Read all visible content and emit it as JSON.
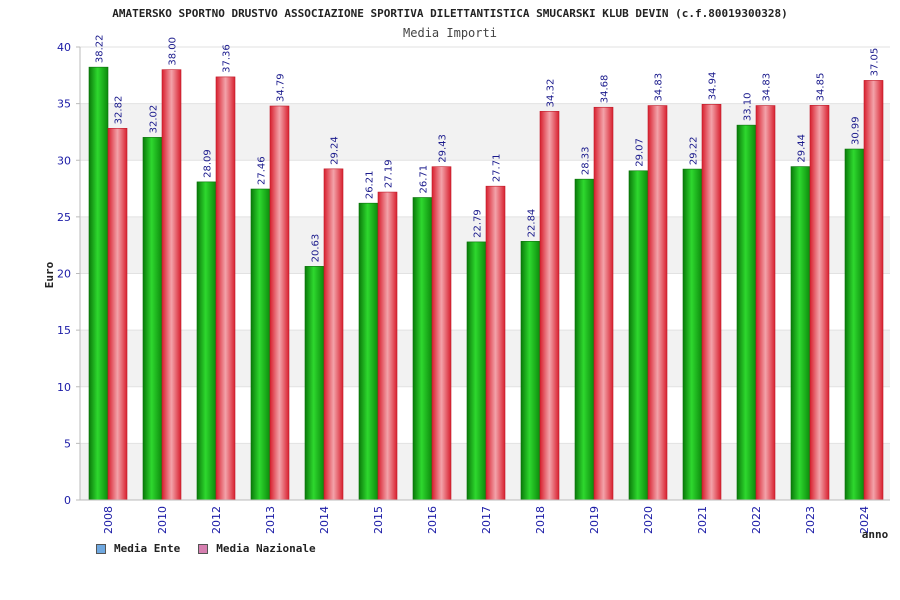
{
  "header": {
    "title": "AMATERSKO SPORTNO DRUSTVO ASSOCIAZIONE SPORTIVA DILETTANTISTICA SMUCARSKI KLUB DEVIN (c.f.80019300328)",
    "subtitle": "Media Importi"
  },
  "legend": {
    "items": [
      {
        "label": "Media Ente",
        "color": "#6fa8e0"
      },
      {
        "label": "Media Nazionale",
        "color": "#d67fb0"
      }
    ]
  },
  "colors": {
    "ente": "#12a812",
    "nazionale": "#e8404e",
    "band": "#f2f2f2",
    "axis": "#bbbbbb"
  },
  "chart_data": {
    "type": "bar",
    "title": "Media Importi",
    "xlabel": "anno",
    "ylabel": "Euro",
    "ylim": [
      0,
      40
    ],
    "yticks": [
      0,
      5,
      10,
      15,
      20,
      25,
      30,
      35,
      40
    ],
    "grid": "alternating horizontal bands",
    "legend_position": "bottom-left",
    "categories": [
      "2008",
      "2010",
      "2012",
      "2013",
      "2014",
      "2015",
      "2016",
      "2017",
      "2018",
      "2019",
      "2020",
      "2021",
      "2022",
      "2023",
      "2024"
    ],
    "series": [
      {
        "name": "Media Ente",
        "values": [
          38.22,
          32.02,
          28.09,
          27.46,
          20.63,
          26.21,
          26.71,
          22.79,
          22.84,
          28.33,
          29.07,
          29.22,
          33.1,
          29.44,
          30.99
        ],
        "labels": [
          "38.22",
          "32.02",
          "28.09",
          "27.46",
          "20.63",
          "26.21",
          "26.71",
          "22.79",
          "22.84",
          "28.33",
          "29.07",
          "29.22",
          "33.10",
          "29.44",
          "30.99"
        ]
      },
      {
        "name": "Media Nazionale",
        "values": [
          32.82,
          38.0,
          37.36,
          34.79,
          29.24,
          27.19,
          29.43,
          27.71,
          34.32,
          34.68,
          34.83,
          34.94,
          34.83,
          34.85,
          37.05
        ],
        "labels": [
          "32.82",
          "38.00",
          "37.36",
          "34.79",
          "29.24",
          "27.19",
          "29.43",
          "27.71",
          "34.32",
          "34.68",
          "34.83",
          "34.94",
          "34.83",
          "34.85",
          "37.05"
        ]
      }
    ]
  }
}
